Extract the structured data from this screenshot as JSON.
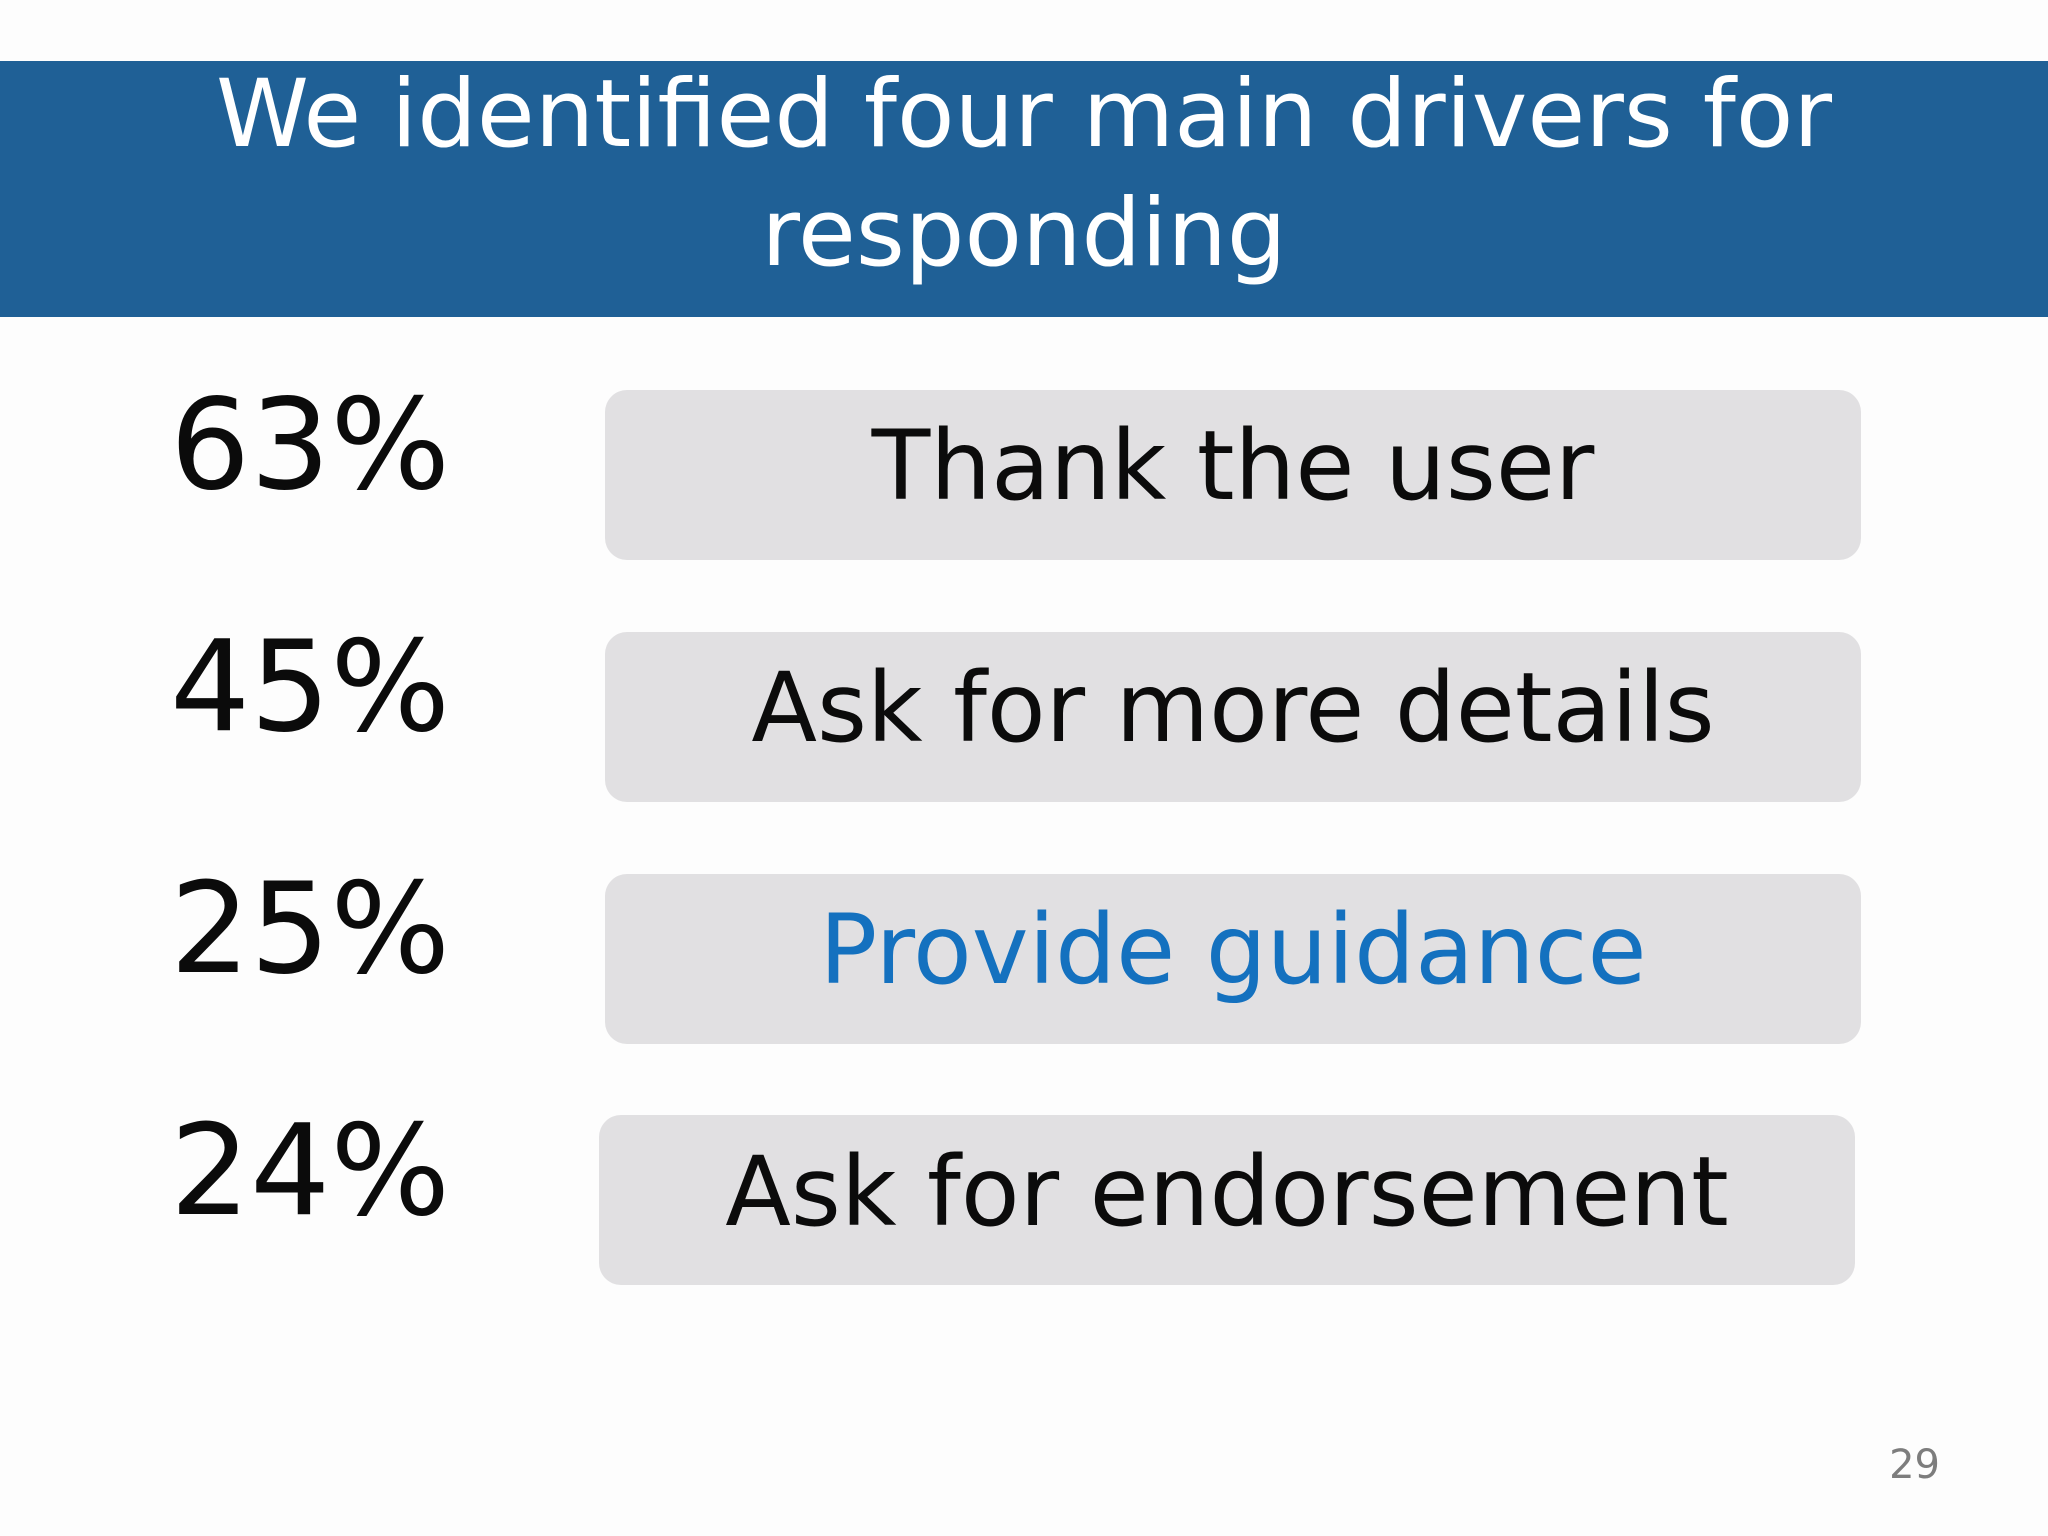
{
  "slide": {
    "title_line_1": "We identified four main drivers for",
    "title_line_2": "responding",
    "page_number": "29",
    "colors": {
      "title_band": "#1f6096",
      "title_text": "#ffffff",
      "box_fill": "#e1e0e2",
      "body_text": "#0b0b0b",
      "accent_text": "#1471bf",
      "page_number": "#7d7d7d"
    },
    "drivers": [
      {
        "percent": "63%",
        "label": "Thank the user"
      },
      {
        "percent": "45%",
        "label": "Ask for more details"
      },
      {
        "percent": "25%",
        "label": "Provide guidance"
      },
      {
        "percent": "24%",
        "label": "Ask for endorsement"
      }
    ]
  }
}
